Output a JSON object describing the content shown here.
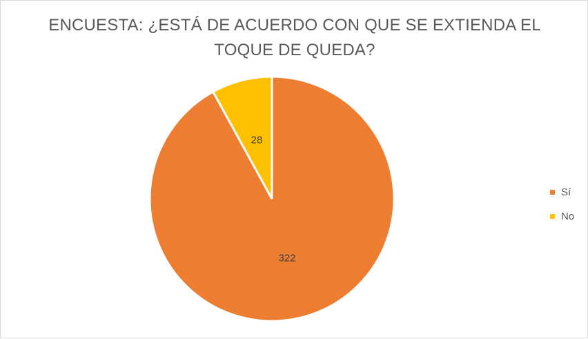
{
  "chart_data": {
    "type": "pie",
    "title_lines": [
      "ENCUESTA: ¿ESTÁ DE ACUERDO CON QUE SE EXTIENDA EL",
      "TOQUE DE QUEDA?"
    ],
    "categories": [
      "Sí",
      "No"
    ],
    "values": [
      322,
      28
    ],
    "colors": [
      "#ED7D31",
      "#FFC000"
    ],
    "data_labels": [
      "322",
      "28"
    ],
    "legend_position": "right"
  }
}
